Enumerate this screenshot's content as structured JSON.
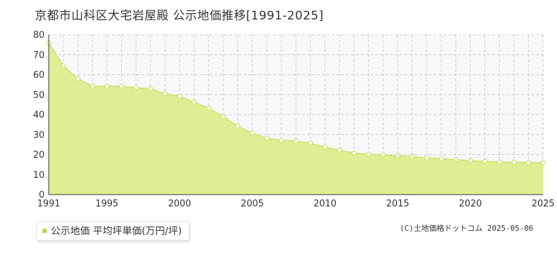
{
  "title": "京都市山科区大宅岩屋殿 公示地価推移[1991-2025]",
  "legend": {
    "label": "公示地価 平均坪単価(万円/坪)",
    "color": "#b7d84b"
  },
  "copyright": "(C)土地価格ドットコム 2025-05-06",
  "colors": {
    "fill": "#ddef92",
    "line": "#c7e36b",
    "marker": "#c7e36b",
    "plot_bg": "#f8f7fa",
    "grid": "#cccccc"
  },
  "chart_data": {
    "type": "area",
    "x": [
      1991,
      1992,
      1993,
      1994,
      1995,
      1996,
      1997,
      1998,
      1999,
      2000,
      2001,
      2002,
      2003,
      2004,
      2005,
      2006,
      2007,
      2008,
      2009,
      2010,
      2011,
      2012,
      2013,
      2014,
      2015,
      2016,
      2017,
      2018,
      2019,
      2020,
      2021,
      2022,
      2023,
      2024,
      2025
    ],
    "series": [
      {
        "name": "公示地価 平均坪単価(万円/坪)",
        "values": [
          76,
          64.5,
          58,
          54.2,
          54.2,
          54.2,
          53.5,
          53,
          50.5,
          49.2,
          46.3,
          43.2,
          39,
          34.3,
          30.7,
          28.2,
          27.2,
          26.8,
          25.7,
          23.8,
          22.2,
          20.8,
          20.2,
          19.8,
          19.5,
          18.9,
          18.3,
          18,
          17.5,
          17,
          16.6,
          16.3,
          16.2,
          16,
          16
        ]
      }
    ],
    "x_ticks": [
      "1991",
      "1995",
      "2000",
      "2005",
      "2010",
      "2015",
      "2020",
      "2025"
    ],
    "y_ticks": [
      "0",
      "10",
      "20",
      "30",
      "40",
      "50",
      "60",
      "70",
      "80"
    ],
    "xlim": [
      1991,
      2025
    ],
    "ylim": [
      0,
      80
    ],
    "grid": true
  }
}
